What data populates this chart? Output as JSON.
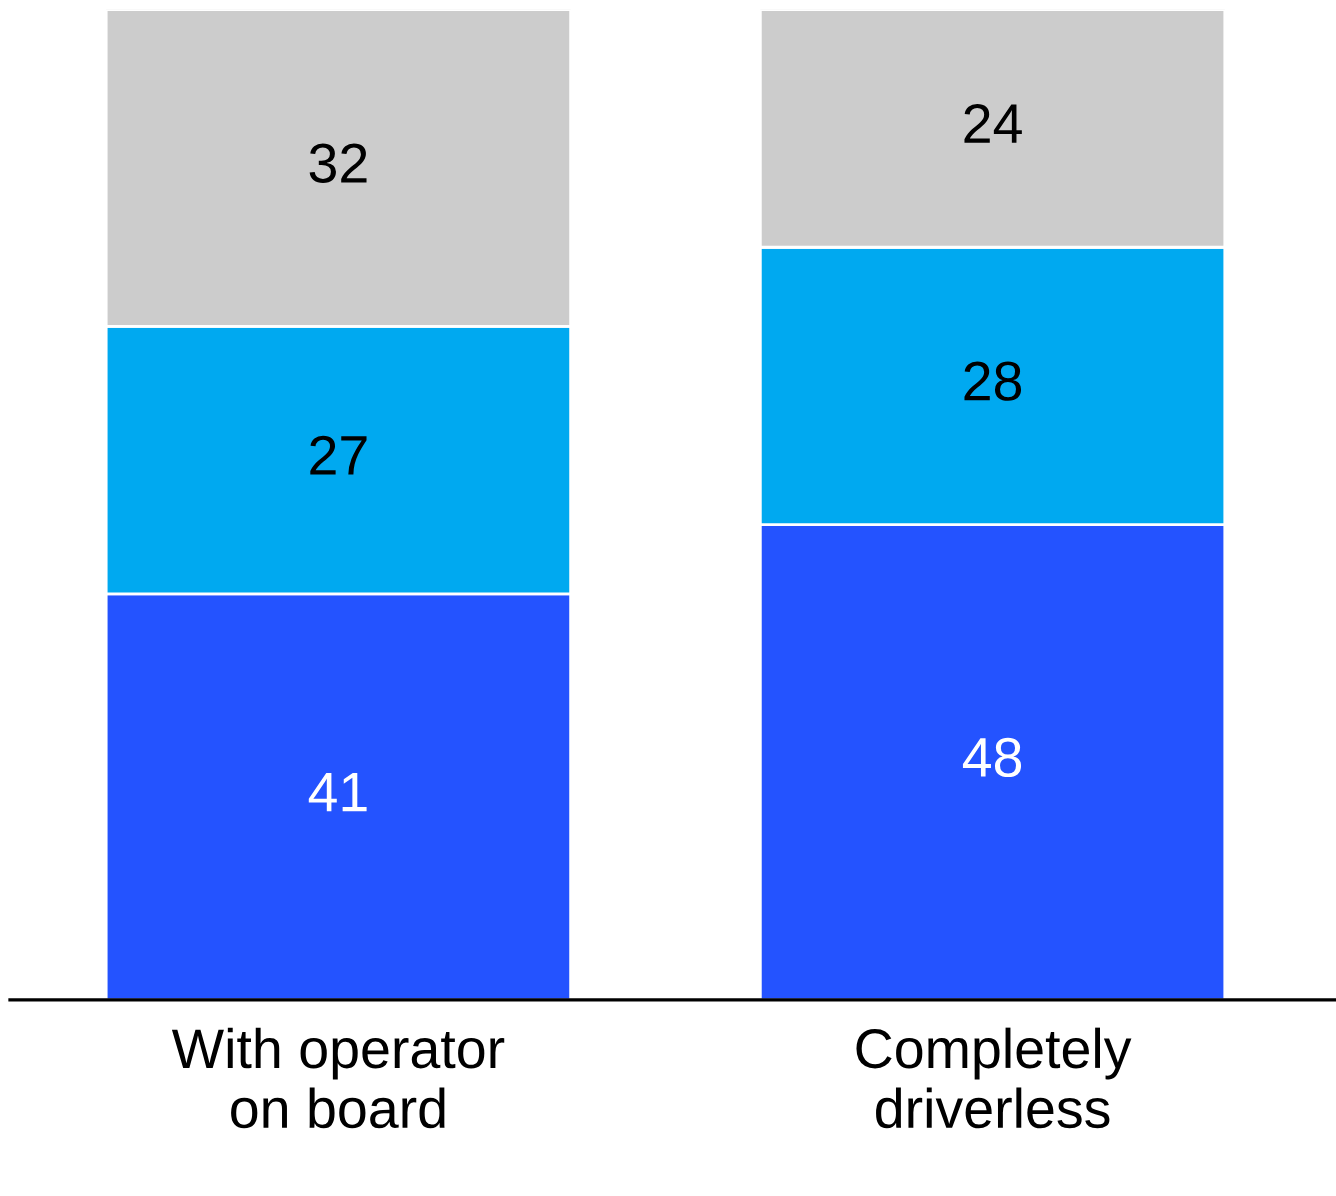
{
  "chart_data": {
    "type": "bar",
    "stacked": true,
    "data_labels": true,
    "categories": [
      "With operator\non board",
      "Completely\ndriverless"
    ],
    "series": [
      {
        "color": "#2453ff",
        "values": [
          41,
          48
        ]
      },
      {
        "color": "#00a9f0",
        "values": [
          27,
          28
        ]
      },
      {
        "color": "#cccccc",
        "values": [
          32,
          24
        ]
      }
    ],
    "grid": false,
    "legend": false
  }
}
